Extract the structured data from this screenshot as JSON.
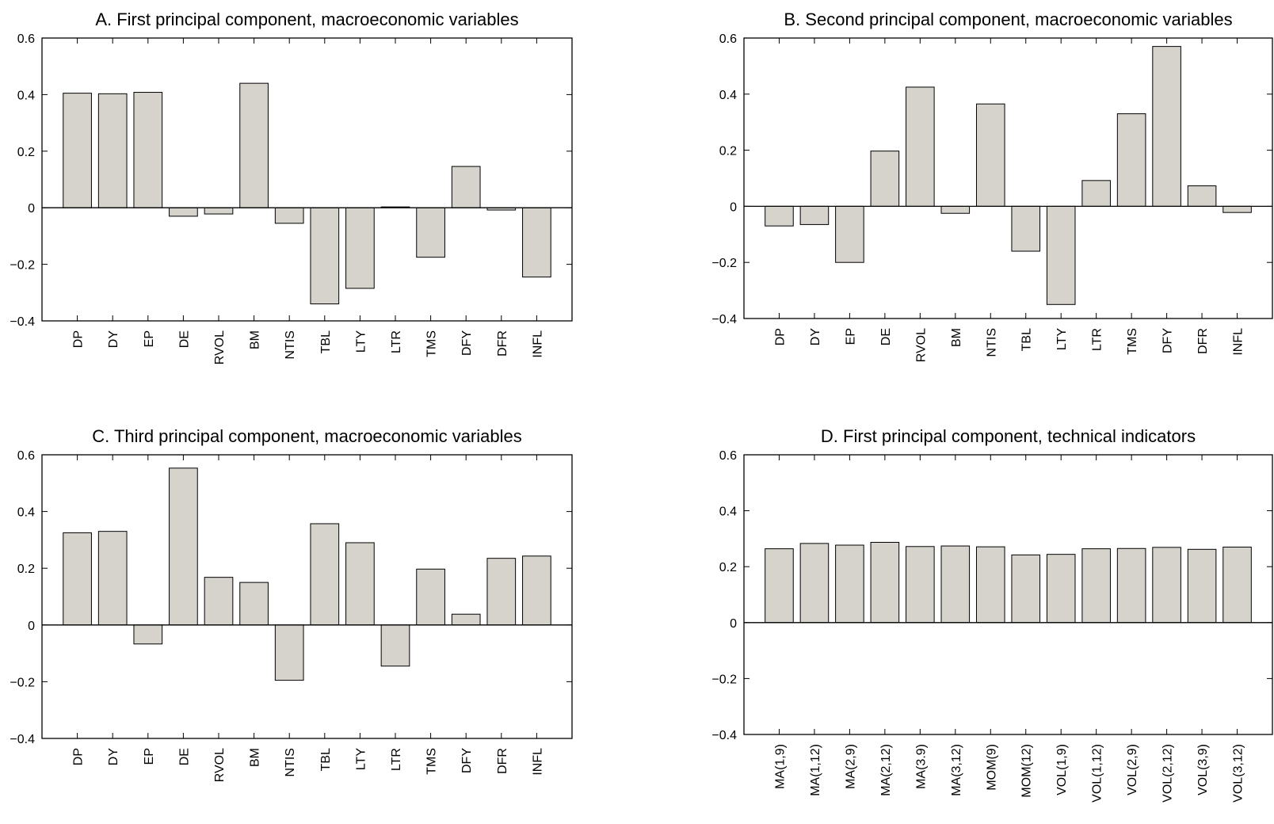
{
  "colors": {
    "bar_fill": "#d6d3cc",
    "bar_stroke": "#000000",
    "axis": "#000000",
    "background": "#ffffff"
  },
  "chart_data": [
    {
      "type": "bar",
      "title": "A. First principal component, macroeconomic variables",
      "categories": [
        "DP",
        "DY",
        "EP",
        "DE",
        "RVOL",
        "BM",
        "NTIS",
        "TBL",
        "LTY",
        "LTR",
        "TMS",
        "DFY",
        "DFR",
        "INFL"
      ],
      "values": [
        0.405,
        0.403,
        0.408,
        -0.03,
        -0.022,
        0.44,
        -0.055,
        -0.34,
        -0.285,
        0.003,
        -0.175,
        0.146,
        -0.008,
        -0.245
      ],
      "yticks": [
        "0.6",
        "0.4",
        "0.2",
        "0",
        "−0.2",
        "−0.4"
      ],
      "ylim": [
        -0.4,
        0.6
      ],
      "xlabel": "",
      "ylabel": "",
      "grid": false
    },
    {
      "type": "bar",
      "title": "B. Second principal component, macroeconomic variables",
      "categories": [
        "DP",
        "DY",
        "EP",
        "DE",
        "RVOL",
        "BM",
        "NTIS",
        "TBL",
        "LTY",
        "LTR",
        "TMS",
        "DFY",
        "DFR",
        "INFL"
      ],
      "values": [
        -0.07,
        -0.065,
        -0.2,
        0.197,
        0.425,
        -0.025,
        0.365,
        -0.16,
        -0.35,
        0.092,
        0.33,
        0.57,
        0.073,
        -0.022
      ],
      "yticks": [
        "0.6",
        "0.4",
        "0.2",
        "0",
        "−0.2",
        "−0.4"
      ],
      "ylim": [
        -0.4,
        0.6
      ],
      "xlabel": "",
      "ylabel": "",
      "grid": false
    },
    {
      "type": "bar",
      "title": "C. Third principal component, macroeconomic variables",
      "categories": [
        "DP",
        "DY",
        "EP",
        "DE",
        "RVOL",
        "BM",
        "NTIS",
        "TBL",
        "LTY",
        "LTR",
        "TMS",
        "DFY",
        "DFR",
        "INFL"
      ],
      "values": [
        0.325,
        0.33,
        -0.067,
        0.553,
        0.168,
        0.15,
        -0.195,
        0.357,
        0.29,
        -0.145,
        0.197,
        0.038,
        0.235,
        0.243
      ],
      "yticks": [
        "0.6",
        "0.4",
        "0.2",
        "0",
        "−0.2",
        "−0.4"
      ],
      "ylim": [
        -0.4,
        0.6
      ],
      "xlabel": "",
      "ylabel": "",
      "grid": false
    },
    {
      "type": "bar",
      "title": "D. First principal component, technical indicators",
      "categories": [
        "MA(1,9)",
        "MA(1,12)",
        "MA(2,9)",
        "MA(2,12)",
        "MA(3.9)",
        "MA(3,12)",
        "MOM(9)",
        "MOM(12)",
        "VOL(1,9)",
        "VOL(1,12)",
        "VOL(2,9)",
        "VOL(2,12)",
        "VOL(3,9)",
        "VOL(3,12)"
      ],
      "values": [
        0.264,
        0.283,
        0.277,
        0.287,
        0.272,
        0.274,
        0.271,
        0.242,
        0.244,
        0.264,
        0.265,
        0.269,
        0.262,
        0.27
      ],
      "yticks": [
        "0.6",
        "0.4",
        "0.2",
        "0",
        "−0.2",
        "−0.4"
      ],
      "ylim": [
        -0.4,
        0.6
      ],
      "xlabel": "",
      "ylabel": "",
      "grid": false
    }
  ]
}
